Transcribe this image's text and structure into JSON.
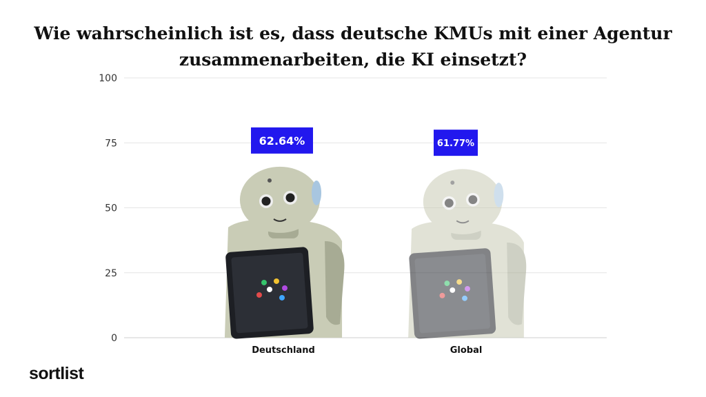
{
  "title": "Wie wahrscheinlich ist es, dass deutsche KMUs mit einer Agentur zusammenarbeiten, die KI einsetzt?",
  "brand": "sortlist",
  "colors": {
    "label_bg": "#2218ee",
    "label_text": "#ffffff",
    "grid": "#e4e4e4",
    "axis_text": "#333333",
    "robot_body": "#c9ccb6",
    "robot_shade": "#a7ab94",
    "tablet": "#1d1f24"
  },
  "chart_data": {
    "type": "bar",
    "title": "Wie wahrscheinlich ist es, dass deutsche KMUs mit einer Agentur zusammenarbeiten, die KI einsetzt?",
    "categories": [
      "Deutschland",
      "Global"
    ],
    "values": [
      62.64,
      61.77
    ],
    "data_labels": [
      "62.64%",
      "61.77%"
    ],
    "ylim": [
      0,
      100
    ],
    "yticks": [
      0,
      25,
      50,
      75,
      100
    ],
    "ytick_labels": [
      "0",
      "25",
      "50",
      "75",
      "100"
    ],
    "xlabel": "",
    "ylabel": "",
    "grid": true,
    "bar_style": "robot image",
    "emphasis": [
      "full",
      "faded"
    ]
  }
}
